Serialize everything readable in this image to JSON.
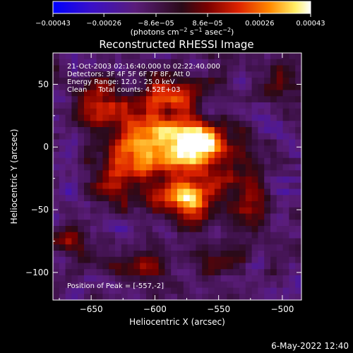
{
  "chart_data": {
    "type": "heatmap",
    "title": "Reconstructed RHESSI Image",
    "xlabel": "Heliocentric X (arcsec)",
    "ylabel": "Heliocentric Y (arcsec)",
    "xlim": [
      -680,
      -485
    ],
    "ylim": [
      -122,
      75
    ],
    "x_ticks": [
      -650,
      -600,
      -550,
      -500
    ],
    "x_tick_labels": [
      "−650",
      "−600",
      "−550",
      "−500"
    ],
    "y_ticks": [
      50,
      0,
      -50,
      -100
    ],
    "y_tick_labels": [
      "50",
      "0",
      "−50",
      "−100"
    ],
    "colorbar": {
      "ticks": [
        -0.00043,
        -0.00026,
        -8.6e-05,
        8.6e-05,
        0.00026,
        0.00043
      ],
      "tick_labels": [
        "−0.00043",
        "−0.00026",
        "−8.6e−05",
        "8.6e−05",
        "0.00026",
        "0.00043"
      ],
      "range": [
        -0.00043,
        0.00043
      ],
      "unit_label_parts": [
        "(photons cm",
        "−2",
        " s",
        "−1",
        " asec",
        "−2",
        ")"
      ]
    },
    "annotations": [
      "21-Oct-2003 02:16:40.000 to 02:22:40.000",
      "Detectors: 3F 4F 5F 6F 7F 8F, Att 0",
      "Energy Range: 12.0 - 25.0 keV",
      "Clean     Total counts: 4.52E+03"
    ],
    "peak_label": "Position of Peak = [-557,-2]",
    "peak_position": [
      -557,
      -2
    ],
    "sources": [
      {
        "x": -565,
        "y": 0,
        "amp": 1.0,
        "sx": 18,
        "sy": 14
      },
      {
        "x": -575,
        "y": -40,
        "amp": 0.85,
        "sx": 18,
        "sy": 12
      },
      {
        "x": -600,
        "y": 10,
        "amp": 0.6,
        "sx": 22,
        "sy": 20
      },
      {
        "x": -625,
        "y": -20,
        "amp": 0.5,
        "sx": 16,
        "sy": 18
      },
      {
        "x": -640,
        "y": 35,
        "amp": 0.45,
        "sx": 14,
        "sy": 14
      },
      {
        "x": -585,
        "y": 45,
        "amp": 0.4,
        "sx": 20,
        "sy": 10
      },
      {
        "x": -525,
        "y": -35,
        "amp": 0.4,
        "sx": 10,
        "sy": 22
      },
      {
        "x": -610,
        "y": -95,
        "amp": 0.35,
        "sx": 25,
        "sy": 10
      },
      {
        "x": -545,
        "y": -90,
        "amp": 0.3,
        "sx": 12,
        "sy": 12
      },
      {
        "x": -500,
        "y": 55,
        "amp": 0.35,
        "sx": 10,
        "sy": 15
      },
      {
        "x": -665,
        "y": -75,
        "amp": 0.3,
        "sx": 10,
        "sy": 10
      }
    ]
  },
  "footer": {
    "timestamp": "6-May-2022 12:40"
  }
}
